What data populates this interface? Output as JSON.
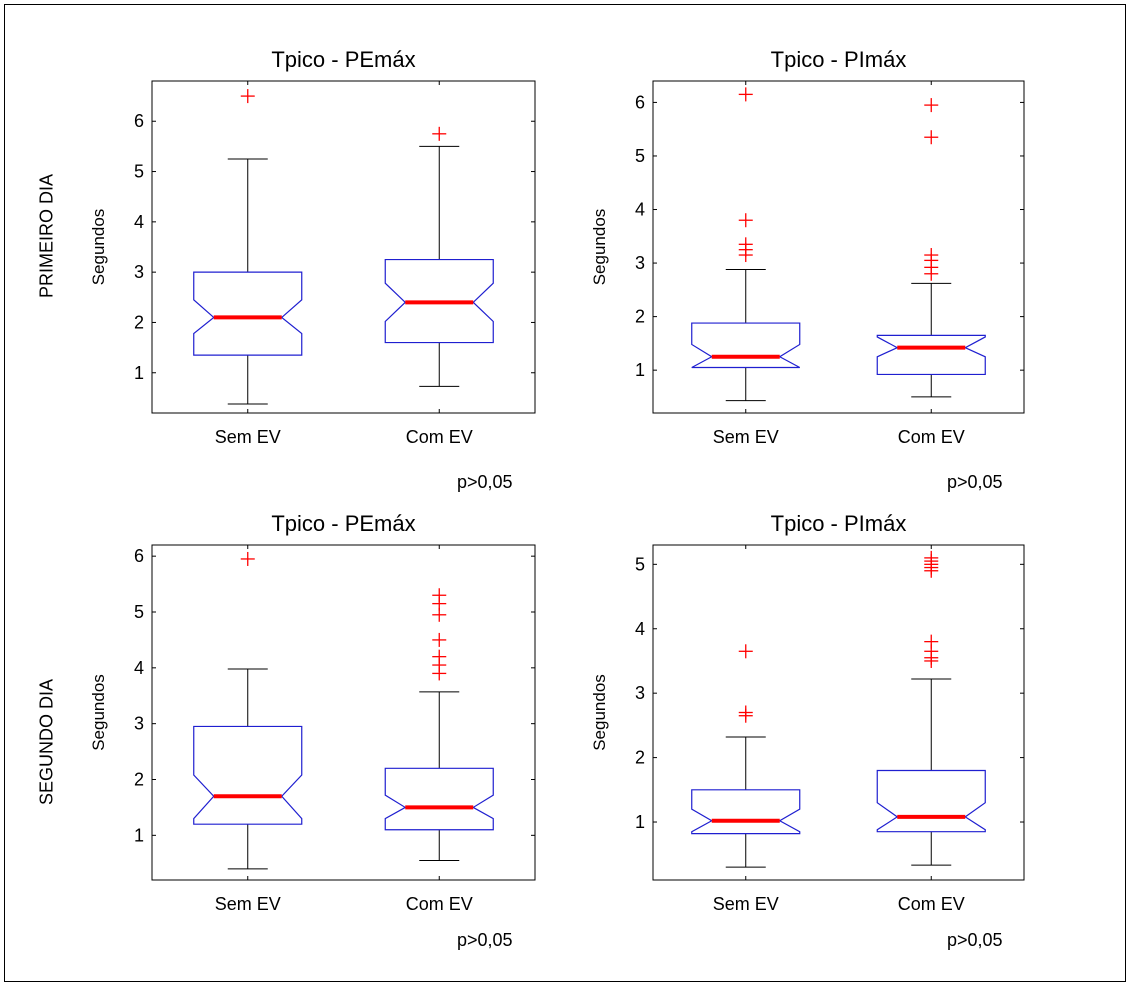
{
  "row_labels": [
    "PRIMEIRO DIA",
    "SEGUNDO DIA"
  ],
  "chart_data": [
    {
      "type": "boxplot",
      "title": "Tpico - PEmáx",
      "ylabel": "Segundos",
      "categories": [
        "Sem EV",
        "Com EV"
      ],
      "ylim": [
        0.2,
        6.8
      ],
      "yticks": [
        1,
        2,
        3,
        4,
        5,
        6
      ],
      "notched": true,
      "boxes": [
        {
          "category": "Sem EV",
          "whisker_low": 0.38,
          "q1": 1.35,
          "median": 2.1,
          "q3": 3.0,
          "whisker_high": 5.25,
          "notch_low": 1.78,
          "notch_high": 2.45,
          "outliers": [
            6.5
          ]
        },
        {
          "category": "Com EV",
          "whisker_low": 0.73,
          "q1": 1.6,
          "median": 2.4,
          "q3": 3.25,
          "whisker_high": 5.5,
          "notch_low": 2.02,
          "notch_high": 2.78,
          "outliers": [
            5.75
          ]
        }
      ],
      "annotation": "p>0,05"
    },
    {
      "type": "boxplot",
      "title": "Tpico - PImáx",
      "ylabel": "Segundos",
      "categories": [
        "Sem EV",
        "Com EV"
      ],
      "ylim": [
        0.2,
        6.4
      ],
      "yticks": [
        1,
        2,
        3,
        4,
        5,
        6
      ],
      "notched": true,
      "boxes": [
        {
          "category": "Sem EV",
          "whisker_low": 0.43,
          "q1": 1.05,
          "median": 1.25,
          "q3": 1.88,
          "whisker_high": 2.88,
          "notch_low": 1.05,
          "notch_high": 1.48,
          "outliers": [
            3.15,
            3.25,
            3.35,
            3.8,
            6.15
          ]
        },
        {
          "category": "Com EV",
          "whisker_low": 0.5,
          "q1": 0.92,
          "median": 1.42,
          "q3": 1.65,
          "whisker_high": 2.62,
          "notch_low": 1.25,
          "notch_high": 1.62,
          "outliers": [
            2.8,
            2.92,
            3.05,
            3.15,
            5.35,
            5.95
          ]
        }
      ],
      "annotation": "p>0,05"
    },
    {
      "type": "boxplot",
      "title": "Tpico - PEmáx",
      "ylabel": "Segundos",
      "categories": [
        "Sem EV",
        "Com EV"
      ],
      "ylim": [
        0.2,
        6.2
      ],
      "yticks": [
        1,
        2,
        3,
        4,
        5,
        6
      ],
      "notched": true,
      "boxes": [
        {
          "category": "Sem EV",
          "whisker_low": 0.4,
          "q1": 1.2,
          "median": 1.7,
          "q3": 2.95,
          "whisker_high": 3.98,
          "notch_low": 1.3,
          "notch_high": 2.08,
          "outliers": [
            5.95
          ]
        },
        {
          "category": "Com EV",
          "whisker_low": 0.55,
          "q1": 1.1,
          "median": 1.5,
          "q3": 2.2,
          "whisker_high": 3.57,
          "notch_low": 1.3,
          "notch_high": 1.72,
          "outliers": [
            3.9,
            4.05,
            4.2,
            4.5,
            4.95,
            5.15,
            5.3
          ]
        }
      ],
      "annotation": "p>0,05"
    },
    {
      "type": "boxplot",
      "title": "Tpico - PImáx",
      "ylabel": "Segundos",
      "categories": [
        "Sem EV",
        "Com EV"
      ],
      "ylim": [
        0.1,
        5.3
      ],
      "yticks": [
        1,
        2,
        3,
        4,
        5
      ],
      "notched": true,
      "boxes": [
        {
          "category": "Sem EV",
          "whisker_low": 0.3,
          "q1": 0.82,
          "median": 1.02,
          "q3": 1.5,
          "whisker_high": 2.32,
          "notch_low": 0.85,
          "notch_high": 1.2,
          "outliers": [
            2.65,
            2.7,
            3.65
          ]
        },
        {
          "category": "Com EV",
          "whisker_low": 0.33,
          "q1": 0.85,
          "median": 1.08,
          "q3": 1.8,
          "whisker_high": 3.22,
          "notch_low": 0.88,
          "notch_high": 1.3,
          "outliers": [
            3.5,
            3.55,
            3.65,
            3.8,
            4.9,
            4.95,
            5.0,
            5.05,
            5.1
          ]
        }
      ],
      "annotation": "p>0,05"
    }
  ]
}
